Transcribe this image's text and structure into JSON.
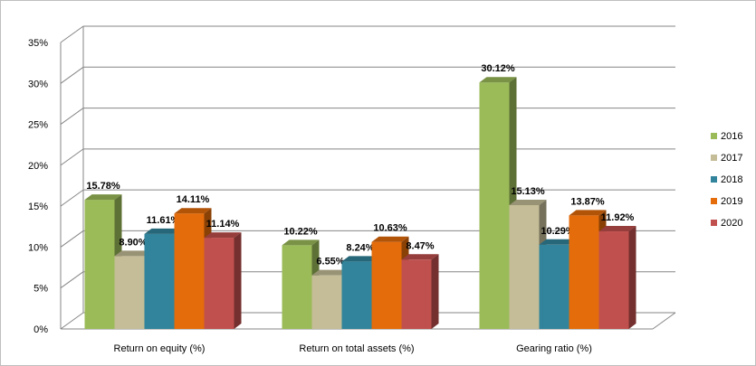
{
  "chart_data": {
    "type": "bar",
    "style": "3d-clustered-column",
    "categories": [
      "Return on equity (%)",
      "Return on total assets (%)",
      "Gearing ratio (%)"
    ],
    "series": [
      {
        "name": "2016",
        "color": "#9bbb59",
        "values": [
          15.78,
          10.22,
          30.12
        ],
        "labels": [
          "15.78%",
          "10.22%",
          "30.12%"
        ]
      },
      {
        "name": "2017",
        "color": "#c4bd97",
        "values": [
          8.9,
          6.55,
          15.13
        ],
        "labels": [
          "8.90%",
          "6.55%",
          "15.13%"
        ]
      },
      {
        "name": "2018",
        "color": "#31849b",
        "values": [
          11.61,
          8.24,
          10.29
        ],
        "labels": [
          "11.61%",
          "8.24%",
          "10.29%"
        ]
      },
      {
        "name": "2019",
        "color": "#e46c0a",
        "values": [
          14.11,
          10.63,
          13.87
        ],
        "labels": [
          "14.11%",
          "10.63%",
          "13.87%"
        ]
      },
      {
        "name": "2020",
        "color": "#c0504d",
        "values": [
          11.14,
          8.47,
          11.92
        ],
        "labels": [
          "11.14%",
          "8.47%",
          "11.92%"
        ]
      }
    ],
    "y_ticks": [
      "0%",
      "5%",
      "10%",
      "15%",
      "20%",
      "25%",
      "30%",
      "35%"
    ],
    "ylim": [
      0,
      35
    ],
    "grid": true,
    "legend_position": "right"
  }
}
